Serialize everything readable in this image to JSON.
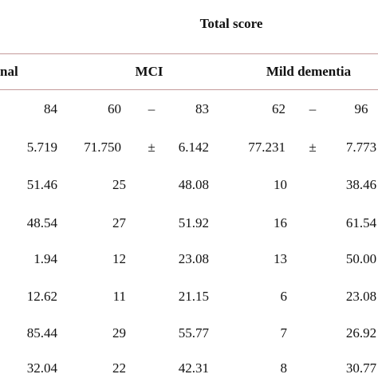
{
  "header": {
    "title": "Total score",
    "groups": [
      "nal",
      "MCI",
      "Mild dementia"
    ]
  },
  "table": {
    "rows": [
      [
        "84",
        "60",
        "–",
        "83",
        "62",
        "–",
        "96"
      ],
      [
        "5.719",
        "71.750",
        "±",
        "6.142",
        "77.231",
        "±",
        "7.773"
      ],
      [
        "51.46",
        "25",
        "48.08",
        "10",
        "38.46"
      ],
      [
        "48.54",
        "27",
        "51.92",
        "16",
        "61.54"
      ],
      [
        "1.94",
        "12",
        "23.08",
        "13",
        "50.00"
      ],
      [
        "12.62",
        "11",
        "21.15",
        "6",
        "23.08"
      ],
      [
        "85.44",
        "29",
        "55.77",
        "7",
        "26.92"
      ],
      [
        "32.04",
        "22",
        "42.31",
        "8",
        "30.77"
      ]
    ]
  }
}
